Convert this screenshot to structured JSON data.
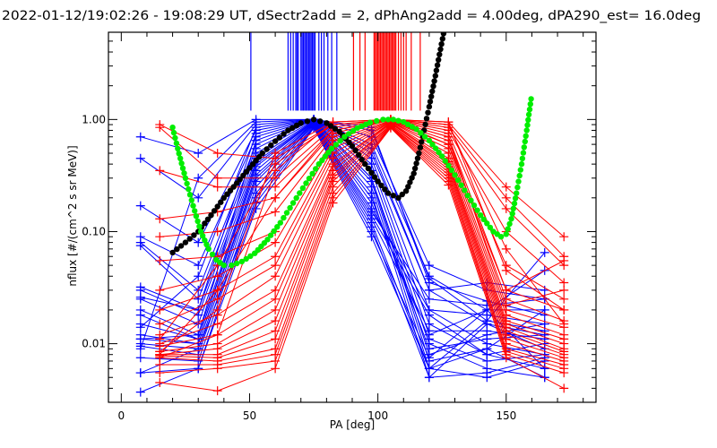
{
  "chart_data": {
    "type": "line",
    "title": "2022-01-12/19:02:26 - 19:08:29 UT, dSectr2add = 2, dPhAng2add = 4.00deg, dPA290_est=  16.0deg",
    "xlabel": "PA [deg]",
    "ylabel": "nflux [#/(cm^2 s sr MeV)]",
    "xlim": [
      -5,
      185
    ],
    "ylim": [
      0.003,
      6
    ],
    "yscale": "log",
    "xticks": [
      0,
      50,
      100,
      150
    ],
    "xtick_labels": [
      "0",
      "50",
      "100",
      "150"
    ],
    "yticks": [
      0.01,
      0.1,
      1.0
    ],
    "ytick_labels": [
      "0.01",
      "0.10",
      "1.00"
    ],
    "colors": {
      "blue": "#0000ff",
      "red": "#ff0000",
      "black": "#000000",
      "green": "#00ee00"
    },
    "blue_pa_bins": [
      7.5,
      30,
      52.5,
      75,
      97.5,
      120,
      142.5,
      165
    ],
    "blue_series": [
      [
        0.7,
        0.5,
        1.0,
        1.0,
        0.6,
        0.04,
        0.02,
        0.02
      ],
      [
        0.45,
        0.2,
        0.9,
        1.0,
        0.5,
        0.03,
        0.015,
        0.012
      ],
      [
        0.17,
        0.08,
        0.8,
        1.0,
        0.45,
        0.02,
        0.01,
        0.008
      ],
      [
        0.09,
        0.05,
        0.7,
        1.0,
        0.4,
        0.015,
        0.008,
        0.01
      ],
      [
        0.08,
        0.03,
        0.6,
        1.0,
        0.35,
        0.012,
        0.02,
        0.006
      ],
      [
        0.075,
        0.025,
        0.55,
        1.0,
        0.3,
        0.01,
        0.006,
        0.005
      ],
      [
        0.032,
        0.02,
        0.5,
        0.98,
        0.3,
        0.008,
        0.012,
        0.015
      ],
      [
        0.03,
        0.018,
        0.45,
        0.97,
        0.28,
        0.007,
        0.009,
        0.02
      ],
      [
        0.025,
        0.015,
        0.42,
        0.96,
        0.25,
        0.006,
        0.005,
        0.007
      ],
      [
        0.02,
        0.012,
        0.4,
        0.95,
        0.22,
        0.005,
        0.015,
        0.009
      ],
      [
        0.018,
        0.011,
        0.38,
        0.95,
        0.2,
        0.009,
        0.011,
        0.012
      ],
      [
        0.015,
        0.011,
        0.35,
        0.94,
        0.18,
        0.011,
        0.007,
        0.008
      ],
      [
        0.012,
        0.01,
        0.32,
        0.93,
        0.16,
        0.02,
        0.018,
        0.015
      ],
      [
        0.011,
        0.01,
        0.3,
        0.92,
        0.15,
        0.025,
        0.022,
        0.025
      ],
      [
        0.01,
        0.009,
        0.28,
        0.9,
        0.14,
        0.018,
        0.008,
        0.006
      ],
      [
        0.0095,
        0.008,
        0.25,
        0.9,
        0.13,
        0.013,
        0.013,
        0.011
      ],
      [
        0.0075,
        0.007,
        0.22,
        0.88,
        0.12,
        0.006,
        0.009,
        0.005
      ],
      [
        0.0055,
        0.006,
        0.2,
        0.86,
        0.11,
        0.005,
        0.0055,
        0.0075
      ],
      [
        0.0055,
        0.009,
        0.18,
        0.85,
        0.1,
        0.0075,
        0.02,
        0.045
      ],
      [
        0.0037,
        0.006,
        0.16,
        0.84,
        0.09,
        0.006,
        0.016,
        0.065
      ],
      [
        0.011,
        0.012,
        0.65,
        1.0,
        0.55,
        0.03,
        0.035,
        0.03
      ],
      [
        0.026,
        0.02,
        0.75,
        1.0,
        0.7,
        0.05,
        0.03,
        0.025
      ],
      [
        0.014,
        0.04,
        0.85,
        1.0,
        0.8,
        0.038,
        0.016,
        0.013
      ],
      [
        0.009,
        0.3,
        0.95,
        1.0,
        0.85,
        0.035,
        0.024,
        0.018
      ]
    ],
    "red_pa_bins": [
      15,
      37.5,
      60,
      82.5,
      105,
      127.5,
      150,
      172.5
    ],
    "red_series": [
      [
        0.9,
        0.5,
        0.45,
        0.9,
        1.0,
        0.95,
        0.25,
        0.09
      ],
      [
        0.85,
        0.3,
        0.3,
        0.85,
        1.0,
        0.9,
        0.2,
        0.06
      ],
      [
        0.35,
        0.25,
        0.25,
        0.8,
        1.0,
        0.85,
        0.16,
        0.05
      ],
      [
        0.13,
        0.15,
        0.2,
        0.75,
        1.0,
        0.8,
        0.1,
        0.035
      ],
      [
        0.09,
        0.1,
        0.15,
        0.7,
        1.0,
        0.75,
        0.05,
        0.025
      ],
      [
        0.055,
        0.06,
        0.1,
        0.65,
        0.98,
        0.7,
        0.03,
        0.02
      ],
      [
        0.03,
        0.04,
        0.08,
        0.6,
        0.97,
        0.65,
        0.025,
        0.016
      ],
      [
        0.02,
        0.03,
        0.06,
        0.55,
        0.96,
        0.6,
        0.02,
        0.014
      ],
      [
        0.015,
        0.025,
        0.05,
        0.5,
        0.95,
        0.55,
        0.018,
        0.012
      ],
      [
        0.012,
        0.018,
        0.04,
        0.45,
        0.95,
        0.5,
        0.016,
        0.011
      ],
      [
        0.01,
        0.015,
        0.03,
        0.4,
        0.94,
        0.45,
        0.015,
        0.01
      ],
      [
        0.0095,
        0.012,
        0.025,
        0.38,
        0.93,
        0.42,
        0.014,
        0.009
      ],
      [
        0.0085,
        0.01,
        0.02,
        0.35,
        0.92,
        0.4,
        0.013,
        0.0085
      ],
      [
        0.008,
        0.009,
        0.016,
        0.32,
        0.9,
        0.38,
        0.012,
        0.008
      ],
      [
        0.008,
        0.008,
        0.013,
        0.3,
        0.9,
        0.36,
        0.011,
        0.0075
      ],
      [
        0.0078,
        0.0075,
        0.011,
        0.28,
        0.88,
        0.34,
        0.01,
        0.007
      ],
      [
        0.0075,
        0.007,
        0.009,
        0.25,
        0.87,
        0.32,
        0.009,
        0.0065
      ],
      [
        0.0065,
        0.0065,
        0.008,
        0.22,
        0.86,
        0.3,
        0.0085,
        0.006
      ],
      [
        0.0055,
        0.006,
        0.007,
        0.2,
        0.85,
        0.28,
        0.008,
        0.0055
      ],
      [
        0.0045,
        0.0038,
        0.006,
        0.18,
        0.84,
        0.26,
        0.0075,
        0.004
      ],
      [
        0.0075,
        0.012,
        0.35,
        0.95,
        1.0,
        0.9,
        0.07,
        0.015
      ],
      [
        0.0085,
        0.02,
        0.5,
        0.95,
        1.0,
        0.95,
        0.045,
        0.02
      ],
      [
        0.011,
        0.05,
        0.4,
        0.9,
        0.99,
        0.6,
        0.03,
        0.055
      ],
      [
        0.008,
        0.03,
        0.2,
        0.8,
        0.98,
        0.7,
        0.022,
        0.03
      ]
    ],
    "blue_peak_markers_pa": [
      50.5,
      65,
      66,
      67,
      68,
      68.5,
      69,
      70,
      70.5,
      71,
      71.5,
      72,
      72.5,
      73,
      73.5,
      74,
      74.5,
      75,
      75.5,
      77,
      78,
      79,
      80.5,
      82,
      84
    ],
    "red_peak_markers_pa": [
      90.5,
      93,
      95,
      98.5,
      99,
      99.5,
      100,
      100.5,
      101,
      101.5,
      102,
      102.5,
      103,
      103.5,
      104,
      104.5,
      105,
      105.5,
      106,
      106.5,
      107,
      108,
      109,
      110,
      111,
      113,
      116.5
    ],
    "peak_marker_floor": 1.2,
    "black_fit": {
      "x": [
        20,
        25,
        30,
        35,
        40,
        45,
        50,
        55,
        60,
        65,
        70,
        75,
        80,
        85,
        90,
        95,
        100,
        104,
        108,
        111,
        114,
        116,
        118,
        120,
        122,
        124,
        126
      ],
      "y": [
        0.065,
        0.08,
        0.1,
        0.14,
        0.2,
        0.27,
        0.37,
        0.5,
        0.64,
        0.8,
        0.93,
        1.0,
        0.93,
        0.78,
        0.58,
        0.4,
        0.28,
        0.22,
        0.2,
        0.23,
        0.33,
        0.5,
        0.8,
        1.3,
        2.2,
        3.8,
        6.5
      ]
    },
    "green_fit": {
      "x": [
        20,
        22,
        25,
        28,
        31,
        34,
        37,
        40,
        43,
        47,
        52,
        57,
        62,
        67,
        72,
        77,
        82,
        87,
        92,
        97,
        102,
        106,
        110,
        115,
        120,
        125,
        130,
        135,
        140,
        145,
        148,
        150,
        152,
        154,
        156,
        158,
        160
      ],
      "y": [
        0.85,
        0.55,
        0.3,
        0.17,
        0.1,
        0.07,
        0.056,
        0.05,
        0.05,
        0.054,
        0.064,
        0.085,
        0.12,
        0.18,
        0.27,
        0.4,
        0.55,
        0.7,
        0.84,
        0.94,
        1.0,
        1.0,
        0.95,
        0.82,
        0.65,
        0.47,
        0.32,
        0.21,
        0.14,
        0.1,
        0.09,
        0.095,
        0.13,
        0.22,
        0.4,
        0.8,
        1.7
      ]
    }
  }
}
